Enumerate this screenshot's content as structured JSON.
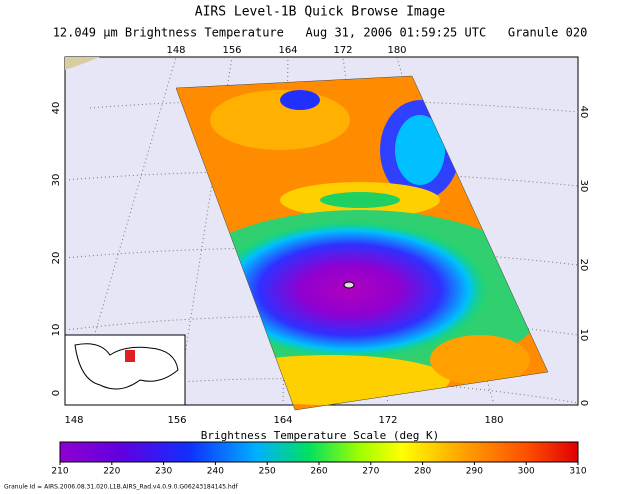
{
  "title": "AIRS Level-1B Quick Browse Image",
  "subtitle": "12.049 μm Brightness Temperature   Aug 31, 2006 01:59:25 UTC   Granule 020",
  "map": {
    "lon_ticks": [
      148,
      156,
      164,
      172,
      180
    ],
    "lat_ticks": [
      0,
      10,
      20,
      30,
      40
    ]
  },
  "colorbar": {
    "label": "Brightness Temperature Scale (deg K)",
    "ticks": [
      210,
      220,
      230,
      240,
      250,
      260,
      270,
      280,
      290,
      300,
      310
    ]
  },
  "footer": "Granule Id = AIRS.2006.08.31.020.L1B.AIRS_Rad.v4.0.9.0.G06243184145.hdf"
}
